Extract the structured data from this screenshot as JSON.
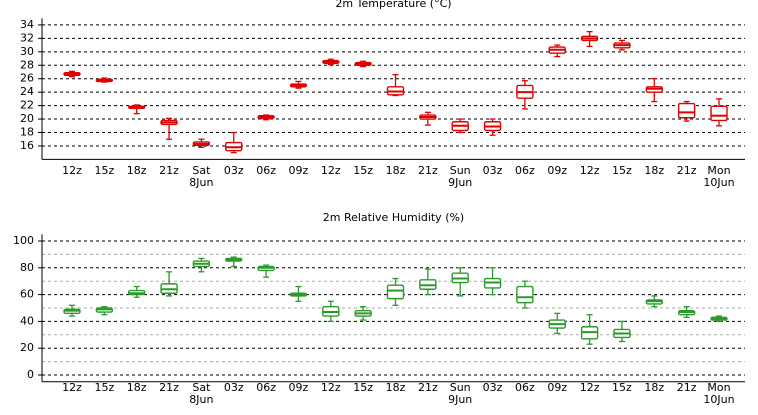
{
  "chart_data": [
    {
      "type": "box",
      "title": "2m Temperature (°C)",
      "color": "#e00000",
      "categories": [
        "12z",
        "15z",
        "18z",
        "21z",
        "Sat",
        "03z",
        "06z",
        "09z",
        "12z",
        "15z",
        "18z",
        "21z",
        "Sun",
        "03z",
        "06z",
        "09z",
        "12z",
        "15z",
        "18z",
        "21z",
        "Mon"
      ],
      "dates": [
        null,
        null,
        null,
        null,
        "8Jun",
        null,
        null,
        null,
        null,
        null,
        null,
        null,
        "9Jun",
        null,
        null,
        null,
        null,
        null,
        null,
        null,
        "10Jun"
      ],
      "boxes": [
        [
          26.3,
          26.5,
          26.7,
          26.9,
          27.1
        ],
        [
          25.5,
          25.6,
          25.8,
          25.9,
          26.1
        ],
        [
          20.8,
          21.6,
          21.8,
          21.9,
          22.1
        ],
        [
          17,
          19.2,
          19.5,
          19.8,
          20.1
        ],
        [
          15.8,
          16.1,
          16.3,
          16.6,
          17
        ],
        [
          15,
          15.3,
          15.8,
          16.5,
          18
        ],
        [
          19.9,
          20.1,
          20.3,
          20.5,
          20.6
        ],
        [
          24.6,
          24.8,
          25,
          25.2,
          25.6
        ],
        [
          28.1,
          28.3,
          28.5,
          28.7,
          28.9
        ],
        [
          27.8,
          28,
          28.2,
          28.4,
          28.6
        ],
        [
          23.5,
          23.6,
          24.1,
          24.8,
          26.6
        ],
        [
          19.1,
          20,
          20.3,
          20.6,
          21
        ],
        [
          18,
          18.3,
          19,
          19.6,
          20
        ],
        [
          17.6,
          18.3,
          18.9,
          19.6,
          20
        ],
        [
          21.5,
          23.1,
          24,
          25,
          25.7
        ],
        [
          29.3,
          29.8,
          30.3,
          30.7,
          31
        ],
        [
          30.8,
          31.7,
          32,
          32.3,
          33
        ],
        [
          30.3,
          30.6,
          31,
          31.3,
          31.7
        ],
        [
          22.6,
          24,
          24.5,
          24.8,
          26
        ],
        [
          19.7,
          20.2,
          21,
          22.3,
          22.6
        ],
        [
          19,
          19.8,
          20.5,
          21.9,
          23
        ]
      ],
      "ylim": [
        14,
        35
      ],
      "yticks": [
        16,
        18,
        20,
        22,
        24,
        26,
        28,
        30,
        32,
        34
      ],
      "grid": true
    },
    {
      "type": "box",
      "title": "2m Relative Humidity (%)",
      "color": "#2a9a2a",
      "categories": [
        "12z",
        "15z",
        "18z",
        "21z",
        "Sat",
        "03z",
        "06z",
        "09z",
        "12z",
        "15z",
        "18z",
        "21z",
        "Sun",
        "03z",
        "06z",
        "09z",
        "12z",
        "15z",
        "18z",
        "21z",
        "Mon"
      ],
      "dates": [
        null,
        null,
        null,
        null,
        "8Jun",
        null,
        null,
        null,
        null,
        null,
        null,
        null,
        "9Jun",
        null,
        null,
        null,
        null,
        null,
        null,
        null,
        "10Jun"
      ],
      "boxes": [
        [
          44,
          46,
          48,
          49,
          52
        ],
        [
          45,
          47,
          49,
          50,
          51
        ],
        [
          58,
          60,
          61,
          63,
          66
        ],
        [
          59,
          61,
          64,
          68,
          77
        ],
        [
          77,
          81,
          83,
          85,
          87
        ],
        [
          81,
          85,
          86,
          87,
          88
        ],
        [
          73,
          78,
          80,
          81,
          82
        ],
        [
          55,
          59,
          60,
          61,
          66
        ],
        [
          40,
          44,
          47,
          51,
          55
        ],
        [
          41,
          44,
          46,
          48,
          51
        ],
        [
          52,
          57,
          63,
          67,
          72
        ],
        [
          60,
          64,
          67,
          71,
          79
        ],
        [
          59,
          69,
          72,
          76,
          80
        ],
        [
          60,
          65,
          69,
          72,
          80
        ],
        [
          50,
          54,
          58,
          66,
          70
        ],
        [
          31,
          35,
          38,
          41,
          46
        ],
        [
          23,
          27,
          32,
          36,
          45
        ],
        [
          25,
          28,
          31,
          34,
          40
        ],
        [
          51,
          53,
          55,
          56,
          59
        ],
        [
          43,
          45,
          47,
          48,
          51
        ],
        [
          40,
          41,
          42,
          43,
          44
        ]
      ],
      "ylim": [
        -5,
        105
      ],
      "yticks": [
        0,
        20,
        40,
        60,
        80,
        100
      ],
      "minor_yticks": [
        10,
        30,
        50,
        70,
        90
      ],
      "grid": true
    }
  ]
}
